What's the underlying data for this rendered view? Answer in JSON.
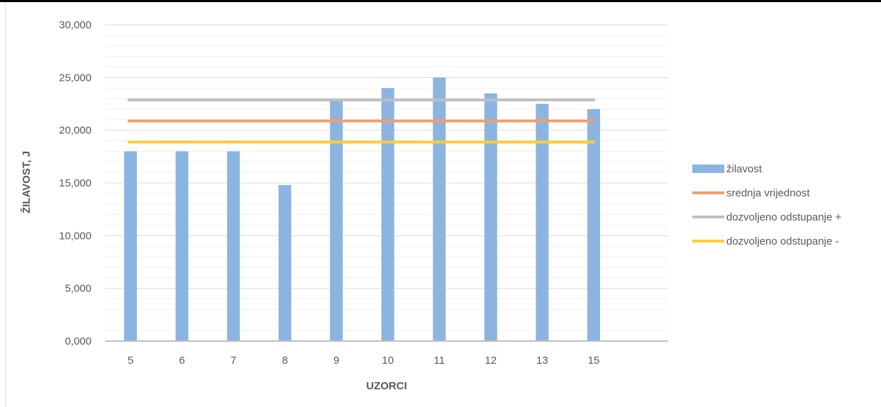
{
  "chart_data": {
    "type": "bar",
    "title": "",
    "xlabel": "UZORCI",
    "ylabel": "ŽILAVOST, J",
    "categories": [
      "5",
      "6",
      "7",
      "8",
      "9",
      "10",
      "11",
      "12",
      "13",
      "15"
    ],
    "ylim": [
      0,
      30
    ],
    "y_ticks": [
      0,
      5,
      10,
      15,
      20,
      25,
      30
    ],
    "y_tick_labels": [
      "0,000",
      "5,000",
      "10,000",
      "15,000",
      "20,000",
      "25,000",
      "30,000"
    ],
    "grid": true,
    "minor_grid": true,
    "legend_position": "right",
    "series": [
      {
        "name": "žilavost",
        "kind": "bar",
        "color": "#8cb4e0",
        "values": [
          18,
          18,
          18,
          14.8,
          23,
          24,
          25,
          23.5,
          22.5,
          22
        ]
      },
      {
        "name": "srednja vrijednost",
        "kind": "line",
        "color": "#f0a06e",
        "values": [
          20.88,
          20.88,
          20.88,
          20.88,
          20.88,
          20.88,
          20.88,
          20.88,
          20.88,
          20.88
        ]
      },
      {
        "name": "dozvoljeno odstupanje +",
        "kind": "line",
        "color": "#bfbfbf",
        "values": [
          22.88,
          22.88,
          22.88,
          22.88,
          22.88,
          22.88,
          22.88,
          22.88,
          22.88,
          22.88
        ]
      },
      {
        "name": "dozvoljeno odstupanje -",
        "kind": "line",
        "color": "#ffcc33",
        "values": [
          18.88,
          18.88,
          18.88,
          18.88,
          18.88,
          18.88,
          18.88,
          18.88,
          18.88,
          18.88
        ]
      }
    ]
  }
}
